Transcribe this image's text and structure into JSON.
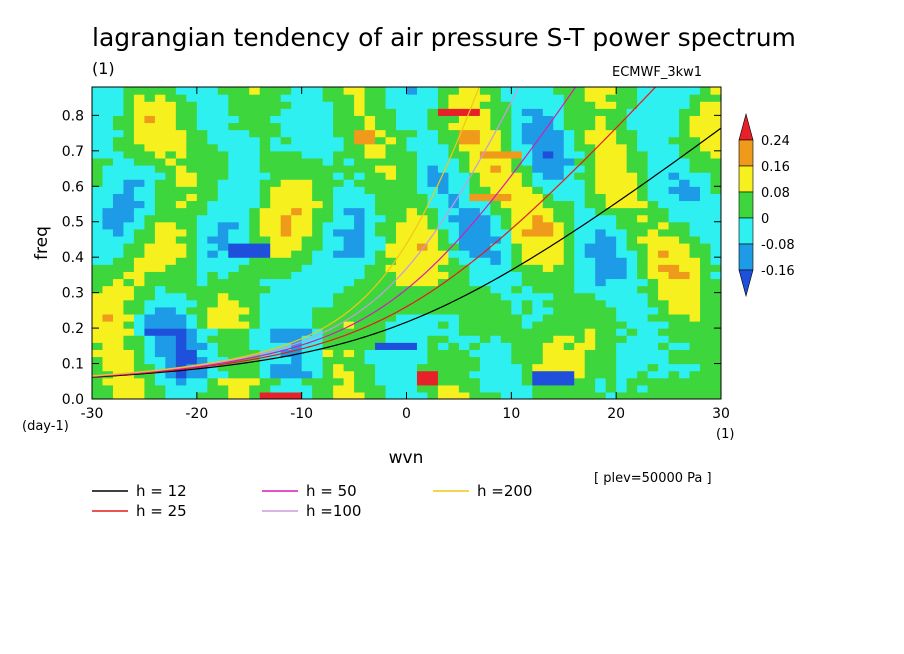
{
  "chart_data": {
    "type": "heatmap",
    "title": "lagrangian tendency of air pressure S-T power spectrum",
    "title_units": "(1)",
    "dataset": "ECMWF_3kw1",
    "xlabel": "wvn",
    "ylabel": "freq",
    "x_units": "(1)",
    "y_units": "(day-1)",
    "xlim": [
      -30,
      30
    ],
    "ylim": [
      0.0,
      0.88
    ],
    "x_ticks": [
      -30,
      -20,
      -10,
      0,
      10,
      20,
      30
    ],
    "x_tick_labels": [
      "-30",
      "-20",
      "-10",
      "0",
      "10",
      "20",
      "30"
    ],
    "y_ticks": [
      0.0,
      0.1,
      0.2,
      0.3,
      0.4,
      0.5,
      0.6,
      0.7,
      0.8
    ],
    "y_tick_labels": [
      "0.0",
      "0.1",
      "0.2",
      "0.3",
      "0.4",
      "0.5",
      "0.6",
      "0.7",
      "0.8"
    ],
    "colorbar": {
      "labels": [
        "0.24",
        "0.16",
        "0.08",
        "0",
        "-0.08",
        "-0.16"
      ],
      "bins": [
        {
          "lo": 0.24,
          "hi": null,
          "color": "#e8202a"
        },
        {
          "lo": 0.16,
          "hi": 0.24,
          "color": "#ef9a1a"
        },
        {
          "lo": 0.08,
          "hi": 0.16,
          "color": "#f5f01e"
        },
        {
          "lo": 0.0,
          "hi": 0.08,
          "color": "#3dd63d"
        },
        {
          "lo": -0.08,
          "hi": 0.0,
          "color": "#2ef0f0"
        },
        {
          "lo": -0.16,
          "hi": -0.08,
          "color": "#1e9be6"
        },
        {
          "lo": null,
          "hi": -0.16,
          "color": "#1e50dc"
        }
      ]
    },
    "curves": [
      {
        "name": "h = 12",
        "label": "h = 12",
        "h": 12,
        "color": "#000000"
      },
      {
        "name": "h = 25",
        "label": "h = 25",
        "h": 25,
        "color": "#e61a1a"
      },
      {
        "name": "h = 50",
        "label": "h = 50",
        "h": 50,
        "color": "#d81ab4"
      },
      {
        "name": "h =100",
        "label": "h =100",
        "h": 100,
        "color": "#c89be0"
      },
      {
        "name": "h =200",
        "label": "h =200",
        "h": 200,
        "color": "#f0c814"
      }
    ],
    "annotation": "[ plev=50000 Pa ]"
  }
}
